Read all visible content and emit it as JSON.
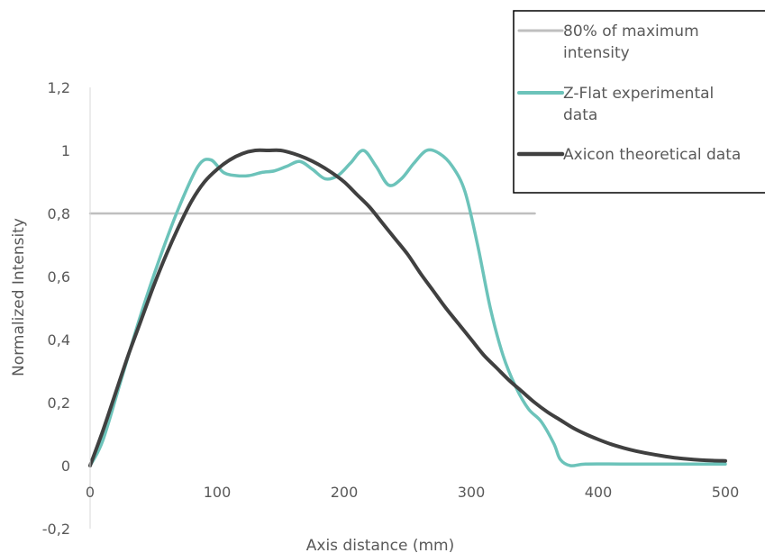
{
  "chart_data": {
    "type": "line",
    "xlabel": "Axis distance (mm)",
    "ylabel": "Normalized Intensity",
    "xlim": [
      0,
      500
    ],
    "ylim": [
      -0.2,
      1.2
    ],
    "x_ticks": [
      "0",
      "100",
      "200",
      "300",
      "400",
      "500"
    ],
    "y_ticks": [
      "-0,2",
      "0",
      "0,2",
      "0,4",
      "0,6",
      "0,8",
      "1",
      "1,2"
    ],
    "grid": false,
    "legend_position": "top-right",
    "series": [
      {
        "name": "80% of maximum intensity",
        "color": "#bfbfbf",
        "x": [
          0,
          350
        ],
        "y": [
          0.8,
          0.8
        ]
      },
      {
        "name": "Z-Flat experimental data",
        "color": "#6cc3ba",
        "x": [
          0,
          10,
          25,
          40,
          55,
          70,
          85,
          95,
          105,
          115,
          125,
          135,
          145,
          155,
          165,
          175,
          185,
          195,
          205,
          215,
          225,
          235,
          245,
          255,
          265,
          275,
          285,
          295,
          305,
          315,
          325,
          335,
          345,
          355,
          365,
          370,
          378,
          390,
          420,
          460,
          500
        ],
        "y": [
          0,
          0.08,
          0.28,
          0.48,
          0.66,
          0.82,
          0.95,
          0.97,
          0.93,
          0.92,
          0.92,
          0.93,
          0.935,
          0.95,
          0.965,
          0.94,
          0.91,
          0.92,
          0.96,
          1.0,
          0.95,
          0.89,
          0.91,
          0.96,
          1.0,
          0.99,
          0.95,
          0.87,
          0.7,
          0.5,
          0.35,
          0.25,
          0.18,
          0.14,
          0.07,
          0.02,
          0.0,
          0.005,
          0.005,
          0.005,
          0.005
        ]
      },
      {
        "name": "Axicon theoretical data",
        "color": "#404040",
        "x": [
          0,
          10,
          20,
          30,
          40,
          50,
          60,
          70,
          80,
          90,
          100,
          110,
          120,
          130,
          140,
          150,
          160,
          170,
          180,
          190,
          200,
          210,
          220,
          230,
          240,
          250,
          260,
          270,
          280,
          290,
          300,
          310,
          320,
          330,
          340,
          350,
          360,
          370,
          380,
          390,
          400,
          410,
          420,
          430,
          440,
          450,
          460,
          470,
          480,
          490,
          500
        ],
        "y": [
          0,
          0.11,
          0.23,
          0.35,
          0.46,
          0.57,
          0.67,
          0.76,
          0.84,
          0.9,
          0.94,
          0.97,
          0.99,
          1.0,
          1.0,
          1.0,
          0.99,
          0.975,
          0.955,
          0.93,
          0.9,
          0.86,
          0.82,
          0.77,
          0.72,
          0.67,
          0.61,
          0.555,
          0.5,
          0.45,
          0.4,
          0.35,
          0.31,
          0.27,
          0.235,
          0.2,
          0.17,
          0.145,
          0.12,
          0.1,
          0.083,
          0.068,
          0.056,
          0.046,
          0.038,
          0.031,
          0.025,
          0.021,
          0.018,
          0.016,
          0.015
        ]
      }
    ]
  }
}
